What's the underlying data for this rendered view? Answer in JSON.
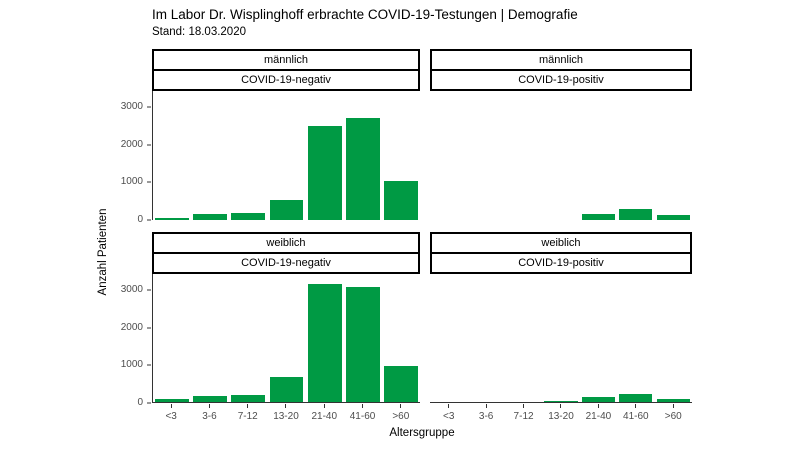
{
  "header": {
    "title": "Im Labor Dr. Wisplinghoff erbrachte COVID-19-Testungen | Demografie",
    "subtitle": "Stand: 18.03.2020"
  },
  "colors": {
    "bar_green": "#009A44",
    "axis_line": "#333333",
    "axis_text_gray": "#4D4D4D",
    "strip_border": "#000000"
  },
  "chart_data": {
    "type": "bar",
    "title": "Im Labor Dr. Wisplinghoff erbrachte COVID-19-Testungen | Demografie",
    "subtitle": "Stand: 18.03.2020",
    "categories": [
      "<3",
      "3-6",
      "7-12",
      "13-20",
      "21-40",
      "41-60",
      ">60"
    ],
    "xlabel": "Altersgruppe",
    "ylabel": "Anzahl Patienten",
    "yticks": [
      0,
      1000,
      2000,
      3000
    ],
    "ylim": [
      0,
      3420
    ],
    "grid": false,
    "legend": "none",
    "bar_color": "#009A44",
    "facet_rows": [
      "männlich",
      "weiblich"
    ],
    "facet_cols": [
      "COVID-19-negativ",
      "COVID-19-positiv"
    ],
    "facets": [
      {
        "row": "männlich",
        "col": "COVID-19-negativ",
        "values": [
          60,
          160,
          190,
          540,
          2480,
          2700,
          1030
        ]
      },
      {
        "row": "männlich",
        "col": "COVID-19-positiv",
        "values": [
          0,
          0,
          0,
          0,
          160,
          280,
          120
        ]
      },
      {
        "row": "weiblich",
        "col": "COVID-19-negativ",
        "values": [
          80,
          150,
          190,
          670,
          3150,
          3080,
          960
        ]
      },
      {
        "row": "weiblich",
        "col": "COVID-19-positiv",
        "values": [
          0,
          0,
          0,
          30,
          130,
          220,
          70
        ]
      }
    ]
  }
}
